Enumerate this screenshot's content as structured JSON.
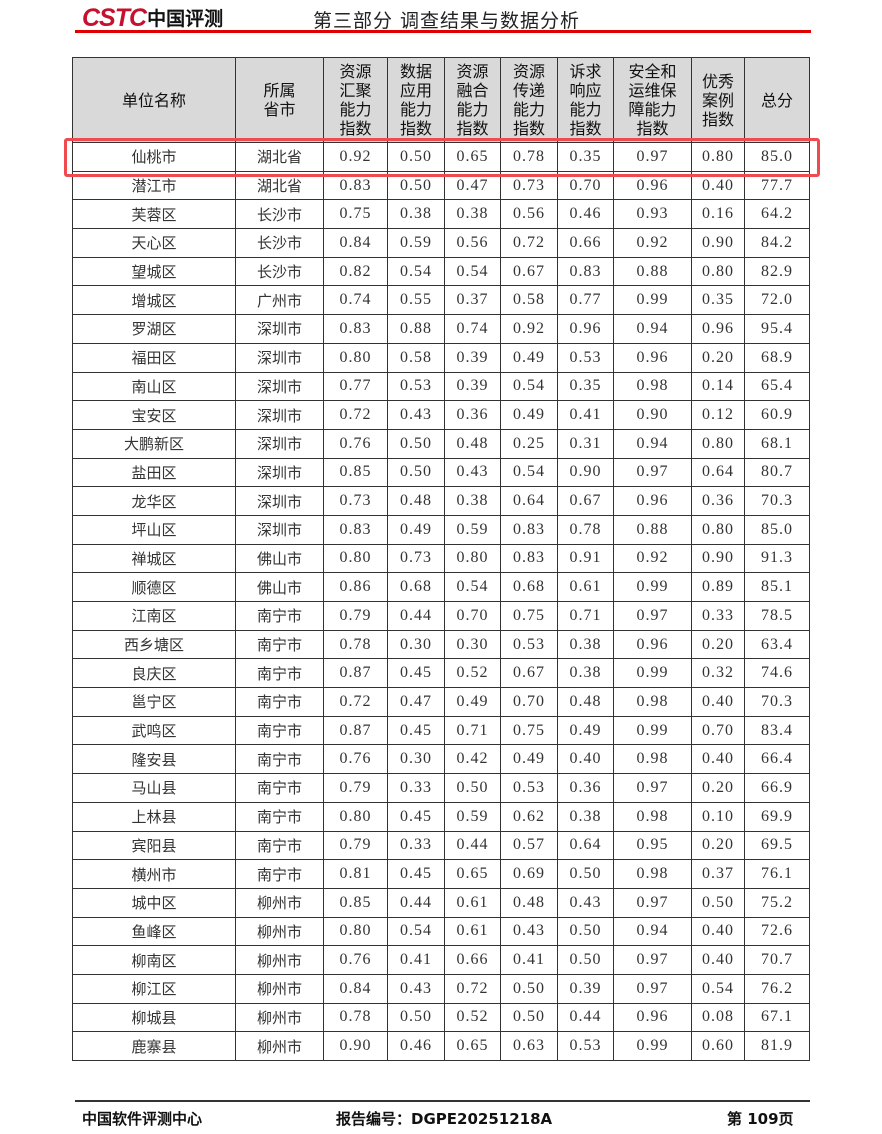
{
  "header": {
    "logo_brand": "CSTC",
    "logo_cn": "中国评测",
    "title": "第三部分 调查结果与数据分析",
    "accent_color": "#e00000"
  },
  "table": {
    "columns": [
      "单位名称",
      "所属省市",
      "资源汇聚能力指数",
      "数据应用能力指数",
      "资源融合能力指数",
      "资源传递能力指数",
      "诉求响应能力指数",
      "安全和运维保障能力指数",
      "优秀案例指数",
      "总分"
    ],
    "highlighted_row": 0,
    "highlight_color": "#ee4a50",
    "rows": [
      [
        "仙桃市",
        "湖北省",
        "0.92",
        "0.50",
        "0.65",
        "0.78",
        "0.35",
        "0.97",
        "0.80",
        "85.0"
      ],
      [
        "潜江市",
        "湖北省",
        "0.83",
        "0.50",
        "0.47",
        "0.73",
        "0.70",
        "0.96",
        "0.40",
        "77.7"
      ],
      [
        "芙蓉区",
        "长沙市",
        "0.75",
        "0.38",
        "0.38",
        "0.56",
        "0.46",
        "0.93",
        "0.16",
        "64.2"
      ],
      [
        "天心区",
        "长沙市",
        "0.84",
        "0.59",
        "0.56",
        "0.72",
        "0.66",
        "0.92",
        "0.90",
        "84.2"
      ],
      [
        "望城区",
        "长沙市",
        "0.82",
        "0.54",
        "0.54",
        "0.67",
        "0.83",
        "0.88",
        "0.80",
        "82.9"
      ],
      [
        "增城区",
        "广州市",
        "0.74",
        "0.55",
        "0.37",
        "0.58",
        "0.77",
        "0.99",
        "0.35",
        "72.0"
      ],
      [
        "罗湖区",
        "深圳市",
        "0.83",
        "0.88",
        "0.74",
        "0.92",
        "0.96",
        "0.94",
        "0.96",
        "95.4"
      ],
      [
        "福田区",
        "深圳市",
        "0.80",
        "0.58",
        "0.39",
        "0.49",
        "0.53",
        "0.96",
        "0.20",
        "68.9"
      ],
      [
        "南山区",
        "深圳市",
        "0.77",
        "0.53",
        "0.39",
        "0.54",
        "0.35",
        "0.98",
        "0.14",
        "65.4"
      ],
      [
        "宝安区",
        "深圳市",
        "0.72",
        "0.43",
        "0.36",
        "0.49",
        "0.41",
        "0.90",
        "0.12",
        "60.9"
      ],
      [
        "大鹏新区",
        "深圳市",
        "0.76",
        "0.50",
        "0.48",
        "0.25",
        "0.31",
        "0.94",
        "0.80",
        "68.1"
      ],
      [
        "盐田区",
        "深圳市",
        "0.85",
        "0.50",
        "0.43",
        "0.54",
        "0.90",
        "0.97",
        "0.64",
        "80.7"
      ],
      [
        "龙华区",
        "深圳市",
        "0.73",
        "0.48",
        "0.38",
        "0.64",
        "0.67",
        "0.96",
        "0.36",
        "70.3"
      ],
      [
        "坪山区",
        "深圳市",
        "0.83",
        "0.49",
        "0.59",
        "0.83",
        "0.78",
        "0.88",
        "0.80",
        "85.0"
      ],
      [
        "禅城区",
        "佛山市",
        "0.80",
        "0.73",
        "0.80",
        "0.83",
        "0.91",
        "0.92",
        "0.90",
        "91.3"
      ],
      [
        "顺德区",
        "佛山市",
        "0.86",
        "0.68",
        "0.54",
        "0.68",
        "0.61",
        "0.99",
        "0.89",
        "85.1"
      ],
      [
        "江南区",
        "南宁市",
        "0.79",
        "0.44",
        "0.70",
        "0.75",
        "0.71",
        "0.97",
        "0.33",
        "78.5"
      ],
      [
        "西乡塘区",
        "南宁市",
        "0.78",
        "0.30",
        "0.30",
        "0.53",
        "0.38",
        "0.96",
        "0.20",
        "63.4"
      ],
      [
        "良庆区",
        "南宁市",
        "0.87",
        "0.45",
        "0.52",
        "0.67",
        "0.38",
        "0.99",
        "0.32",
        "74.6"
      ],
      [
        "邕宁区",
        "南宁市",
        "0.72",
        "0.47",
        "0.49",
        "0.70",
        "0.48",
        "0.98",
        "0.40",
        "70.3"
      ],
      [
        "武鸣区",
        "南宁市",
        "0.87",
        "0.45",
        "0.71",
        "0.75",
        "0.49",
        "0.99",
        "0.70",
        "83.4"
      ],
      [
        "隆安县",
        "南宁市",
        "0.76",
        "0.30",
        "0.42",
        "0.49",
        "0.40",
        "0.98",
        "0.40",
        "66.4"
      ],
      [
        "马山县",
        "南宁市",
        "0.79",
        "0.33",
        "0.50",
        "0.53",
        "0.36",
        "0.97",
        "0.20",
        "66.9"
      ],
      [
        "上林县",
        "南宁市",
        "0.80",
        "0.45",
        "0.59",
        "0.62",
        "0.38",
        "0.98",
        "0.10",
        "69.9"
      ],
      [
        "宾阳县",
        "南宁市",
        "0.79",
        "0.33",
        "0.44",
        "0.57",
        "0.64",
        "0.95",
        "0.20",
        "69.5"
      ],
      [
        "横州市",
        "南宁市",
        "0.81",
        "0.45",
        "0.65",
        "0.69",
        "0.50",
        "0.98",
        "0.37",
        "76.1"
      ],
      [
        "城中区",
        "柳州市",
        "0.85",
        "0.44",
        "0.61",
        "0.48",
        "0.43",
        "0.97",
        "0.50",
        "75.2"
      ],
      [
        "鱼峰区",
        "柳州市",
        "0.80",
        "0.54",
        "0.61",
        "0.43",
        "0.50",
        "0.94",
        "0.40",
        "72.6"
      ],
      [
        "柳南区",
        "柳州市",
        "0.76",
        "0.41",
        "0.66",
        "0.41",
        "0.50",
        "0.97",
        "0.40",
        "70.7"
      ],
      [
        "柳江区",
        "柳州市",
        "0.84",
        "0.43",
        "0.72",
        "0.50",
        "0.39",
        "0.97",
        "0.54",
        "76.2"
      ],
      [
        "柳城县",
        "柳州市",
        "0.78",
        "0.50",
        "0.52",
        "0.50",
        "0.44",
        "0.96",
        "0.08",
        "67.1"
      ],
      [
        "鹿寨县",
        "柳州市",
        "0.90",
        "0.46",
        "0.65",
        "0.63",
        "0.53",
        "0.99",
        "0.60",
        "81.9"
      ]
    ]
  },
  "footer": {
    "org": "中国软件评测中心",
    "report_no": "报告编号：DGPE20251218A",
    "page": "第 109页"
  }
}
